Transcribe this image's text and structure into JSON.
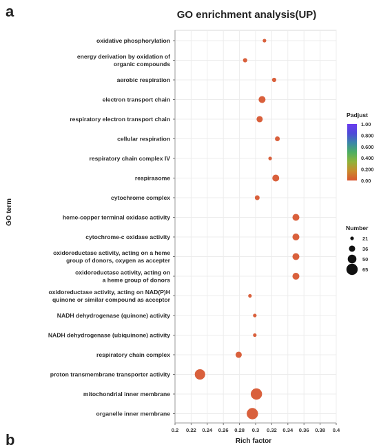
{
  "figure": {
    "panel_label": "a",
    "next_panel_label": "b"
  },
  "chart_data": {
    "type": "scatter",
    "title": "GO enrichment analysis(UP)",
    "xlabel": "Rich factor",
    "ylabel": "GO term",
    "xlim": [
      0.2,
      0.4
    ],
    "xticks": [
      "0.2",
      "0.22",
      "0.24",
      "0.26",
      "0.28",
      "0.3",
      "0.32",
      "0.34",
      "0.36",
      "0.38",
      "0.4"
    ],
    "grid": true,
    "terms": [
      {
        "label": [
          "oxidative phosphorylation"
        ],
        "x": 0.311,
        "padj": 0.0,
        "number": 21
      },
      {
        "label": [
          "energy derivation by oxidation of",
          "organic compounds"
        ],
        "x": 0.287,
        "padj": 0.0,
        "number": 25
      },
      {
        "label": [
          "aerobic respiration"
        ],
        "x": 0.323,
        "padj": 0.0,
        "number": 25
      },
      {
        "label": [
          "electron transport chain"
        ],
        "x": 0.308,
        "padj": 0.0,
        "number": 40
      },
      {
        "label": [
          "respiratory electron transport chain"
        ],
        "x": 0.305,
        "padj": 0.0,
        "number": 36
      },
      {
        "label": [
          "cellular respiration"
        ],
        "x": 0.327,
        "padj": 0.0,
        "number": 28
      },
      {
        "label": [
          "respiratory chain complex IV"
        ],
        "x": 0.318,
        "padj": 0.0,
        "number": 21
      },
      {
        "label": [
          "respirasome"
        ],
        "x": 0.325,
        "padj": 0.0,
        "number": 40
      },
      {
        "label": [
          "cytochrome complex"
        ],
        "x": 0.302,
        "padj": 0.0,
        "number": 28
      },
      {
        "label": [
          "heme-copper terminal oxidase activity"
        ],
        "x": 0.35,
        "padj": 0.0,
        "number": 40
      },
      {
        "label": [
          "cytochrome-c oxidase activity"
        ],
        "x": 0.35,
        "padj": 0.0,
        "number": 40
      },
      {
        "label": [
          "oxidoreductase activity, acting on a heme",
          "group of donors, oxygen as accepter"
        ],
        "x": 0.35,
        "padj": 0.0,
        "number": 40
      },
      {
        "label": [
          "oxidoreductase activity, acting on",
          "a heme group of donors"
        ],
        "x": 0.35,
        "padj": 0.0,
        "number": 40
      },
      {
        "label": [
          "oxidoreductase activity, acting on NAD(P)H",
          "quinone or similar compound as acceptor"
        ],
        "x": 0.293,
        "padj": 0.0,
        "number": 21
      },
      {
        "label": [
          "NADH dehydrogenase (quinone) activity"
        ],
        "x": 0.299,
        "padj": 0.0,
        "number": 21
      },
      {
        "label": [
          "NADH dehydrogenase (ubiquinone) activity"
        ],
        "x": 0.299,
        "padj": 0.0,
        "number": 21
      },
      {
        "label": [
          "respiratory chain complex"
        ],
        "x": 0.279,
        "padj": 0.0,
        "number": 36
      },
      {
        "label": [
          "proton transmembrane transporter activity"
        ],
        "x": 0.231,
        "padj": 0.0,
        "number": 60
      },
      {
        "label": [
          "mitochondrial inner membrane"
        ],
        "x": 0.301,
        "padj": 0.0,
        "number": 65
      },
      {
        "label": [
          "organelle inner membrane"
        ],
        "x": 0.296,
        "padj": 0.0,
        "number": 65
      }
    ],
    "color_legend": {
      "title": "Padjust",
      "ticks": [
        "1.00",
        "0.800",
        "0.600",
        "0.400",
        "0.200",
        "0.00"
      ],
      "range": [
        0.0,
        1.0
      ],
      "gradient": [
        "#d9562f",
        "#c98a2c",
        "#8fb33a",
        "#4cae62",
        "#3b86a8",
        "#4e4ad8",
        "#6a3bef"
      ]
    },
    "size_legend": {
      "title": "Number",
      "values": [
        21,
        36,
        50,
        65
      ],
      "labels": [
        "21",
        "36",
        "50",
        "65"
      ]
    },
    "point_color": "#d9603c"
  }
}
